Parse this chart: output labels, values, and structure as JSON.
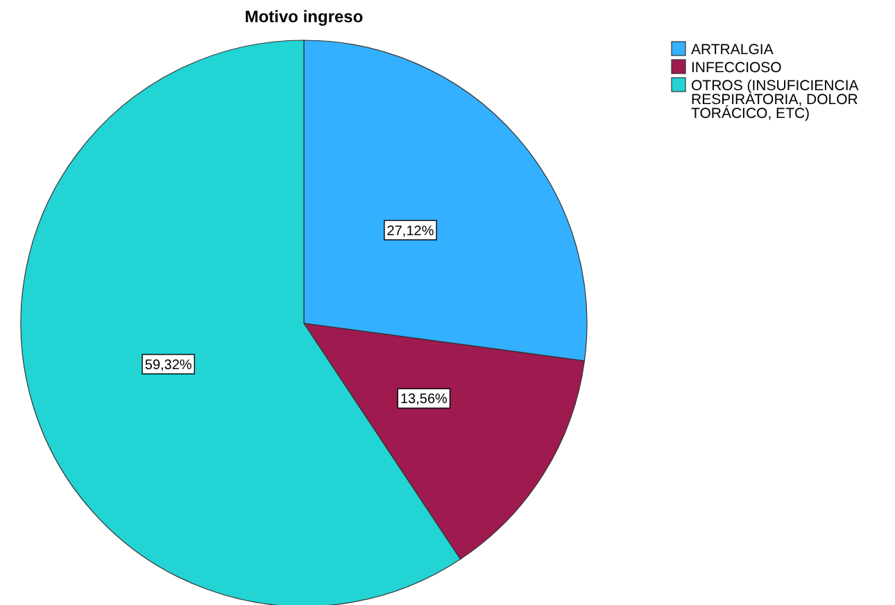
{
  "chart_data": {
    "type": "pie",
    "title": "Motivo ingreso",
    "categories": [
      "ARTRALGIA",
      "INFECCIOSO",
      "OTROS (INSUFICIENCIA RESPIRATORIA, DOLOR TORÁCICO, ETC)"
    ],
    "values": [
      27.12,
      13.56,
      59.32
    ],
    "colors": [
      "#33b0ff",
      "#9e1a4f",
      "#22d4d4"
    ],
    "value_labels": [
      "27,12%",
      "13,56%",
      "59,32%"
    ],
    "legend": "top right"
  }
}
